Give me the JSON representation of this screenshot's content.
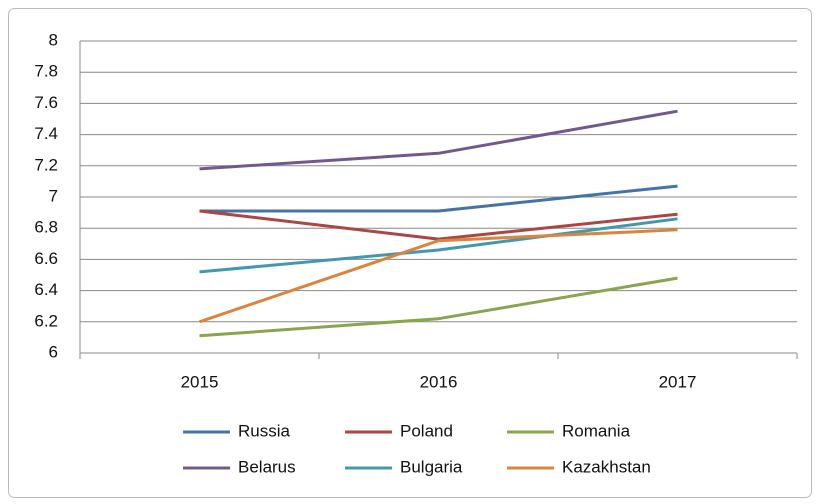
{
  "chart_data": {
    "type": "line",
    "categories": [
      "2015",
      "2016",
      "2017"
    ],
    "series": [
      {
        "name": "Russia",
        "color": "#4572a7",
        "values": [
          6.91,
          6.91,
          7.07
        ]
      },
      {
        "name": "Poland",
        "color": "#aa4643",
        "values": [
          6.91,
          6.73,
          6.89
        ]
      },
      {
        "name": "Romania",
        "color": "#89a54e",
        "values": [
          6.11,
          6.22,
          6.48
        ]
      },
      {
        "name": "Belarus",
        "color": "#71588f",
        "values": [
          7.18,
          7.28,
          7.55
        ]
      },
      {
        "name": "Bulgaria",
        "color": "#4198af",
        "values": [
          6.52,
          6.66,
          6.86
        ]
      },
      {
        "name": "Kazakhstan",
        "color": "#db843d",
        "values": [
          6.2,
          6.72,
          6.79
        ]
      }
    ],
    "ylim": [
      6,
      8
    ],
    "yticks": [
      6,
      6.2,
      6.4,
      6.6,
      6.8,
      7,
      7.2,
      7.4,
      7.6,
      7.8,
      8
    ],
    "grid": true,
    "legend": "bottom"
  }
}
